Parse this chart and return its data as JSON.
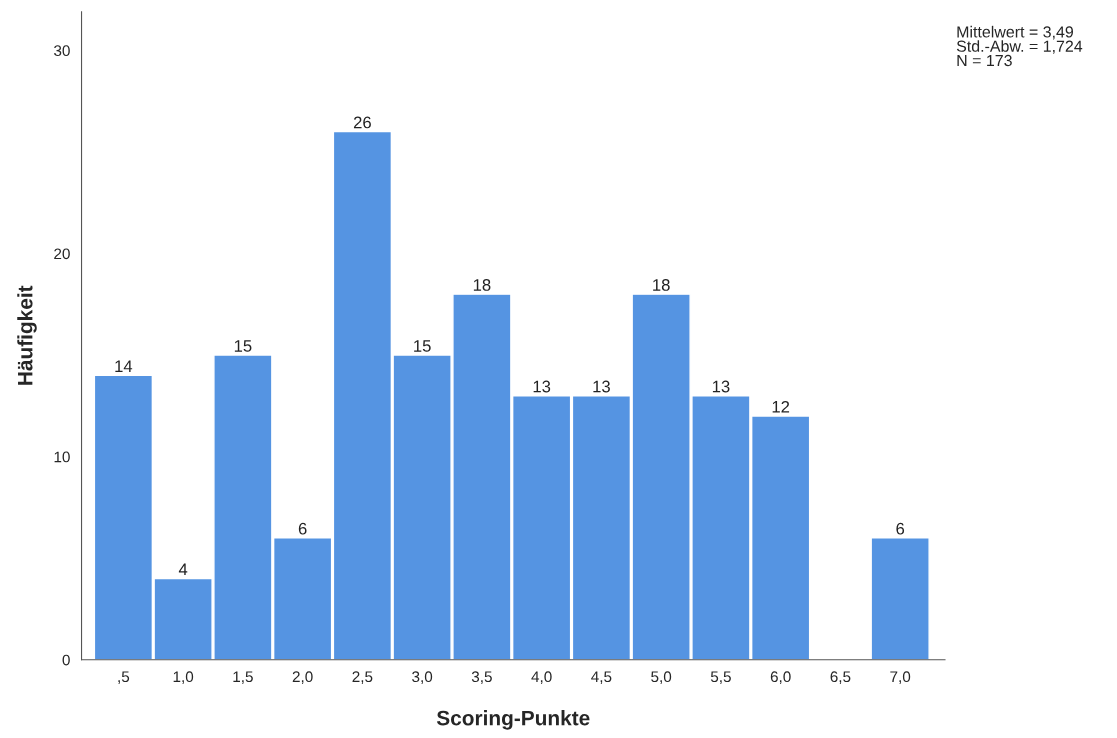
{
  "chart_data": {
    "type": "bar",
    "xlabel": "Scoring-Punkte",
    "ylabel": "Häufigkeit",
    "categories": [
      ",5",
      "1,0",
      "1,5",
      "2,0",
      "2,5",
      "3,0",
      "3,5",
      "4,0",
      "4,5",
      "5,0",
      "5,5",
      "6,0",
      "6,5",
      "7,0"
    ],
    "values": [
      14,
      4,
      15,
      6,
      26,
      15,
      18,
      13,
      13,
      18,
      13,
      12,
      null,
      6
    ],
    "value_labels": [
      "14",
      "4",
      "15",
      "6",
      "26",
      "15",
      "18",
      "13",
      "13",
      "18",
      "13",
      "12",
      null,
      "6"
    ],
    "color": "#5594e2",
    "ylim": [
      0,
      31.9
    ],
    "yticks": [
      0,
      10,
      20,
      30
    ],
    "grid": false,
    "annotations": [
      "Mittelwert = 3,49\nStd.-Abw. = 1,724\nN = 173"
    ]
  }
}
